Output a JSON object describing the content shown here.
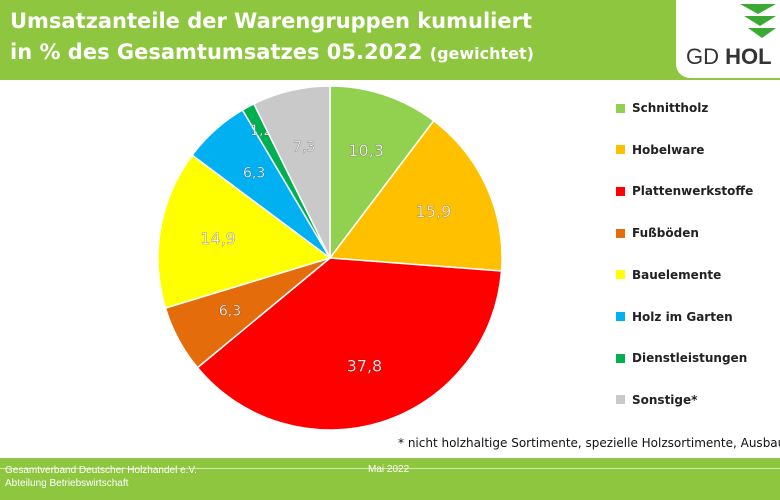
{
  "header": {
    "title_line1": "Umsatzanteile der Warengruppen kumuliert",
    "title_line2": "in % des Gesamtumsatzes 05.2022",
    "title_suffix": "(gewichtet)"
  },
  "logo": {
    "prefix": "GD ",
    "bold": "HOL",
    "icon": "tree-logo-icon"
  },
  "chart_data": {
    "type": "pie",
    "start_angle_deg": 0,
    "direction": "clockwise",
    "categories": [
      "Schnittholz",
      "Hobelware",
      "Plattenwerkstoffe",
      "Fußböden",
      "Bauelemente",
      "Holz im Garten",
      "Dienstleistungen",
      "Sonstige*"
    ],
    "values": [
      10.3,
      15.9,
      37.8,
      6.3,
      14.9,
      6.3,
      1.2,
      7.3
    ],
    "labels": [
      "10,3",
      "15,9",
      "37,8",
      "6,3",
      "14,9",
      "6,3",
      "1,2",
      "7,3"
    ],
    "colors": [
      "#92d050",
      "#ffc000",
      "#ff0000",
      "#e46c0a",
      "#ffff00",
      "#00b0f0",
      "#00b050",
      "#c9c9c9"
    ],
    "legend_position": "right"
  },
  "footnote": "* nicht holzhaltige Sortimente, spezielle Holzsortimente, Ausbaupro",
  "footer": {
    "org_line1": "Gesamtverband Deutscher Holzhandel e.V.",
    "org_line2": "Abteilung Betriebswirtschaft",
    "date": "Mai 2022"
  }
}
